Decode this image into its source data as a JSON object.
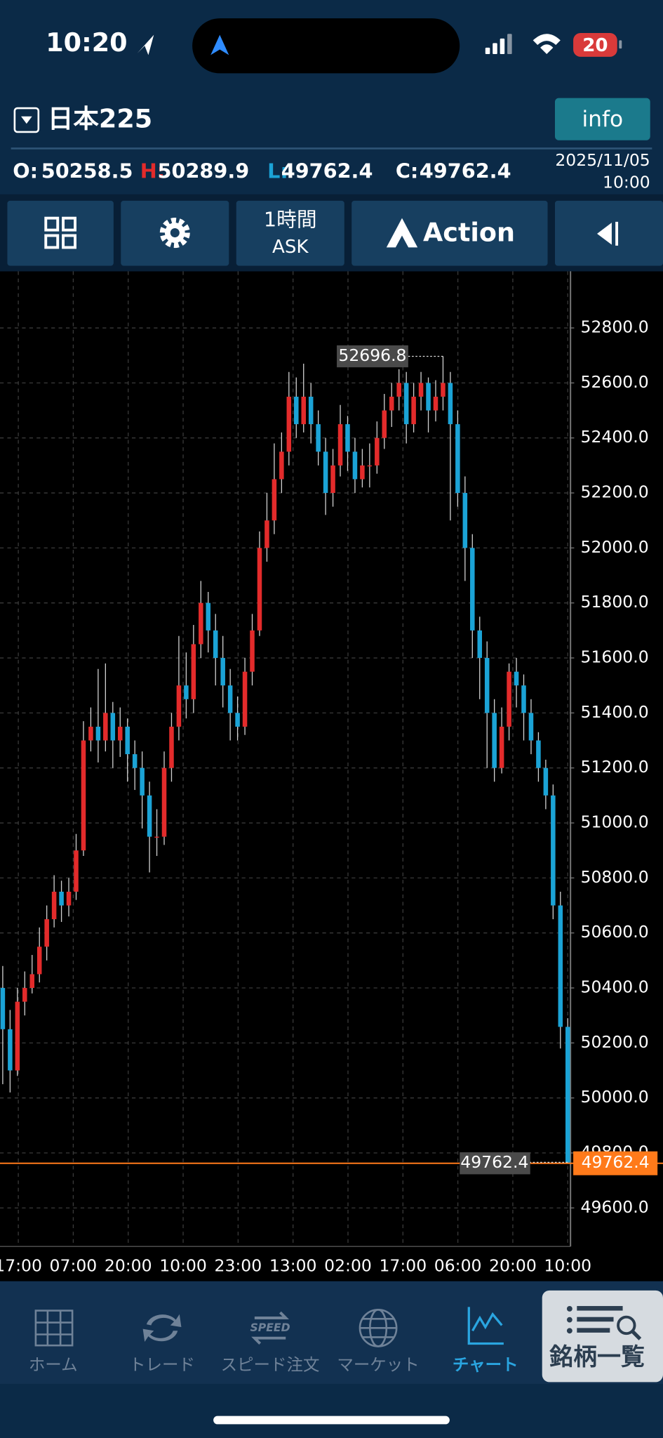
{
  "status_bar": {
    "time": "10:20",
    "battery": "20"
  },
  "header": {
    "title": "日本225",
    "info_button": "info"
  },
  "ohlc_bar": {
    "open_label": "O:",
    "open": 50258.5,
    "high_label": "H:",
    "high": 50289.9,
    "low_label": "L:",
    "low": 49762.4,
    "close_label": "C:",
    "close": 49762.4,
    "date": "2025/11/05",
    "time": "10:00"
  },
  "toolbar": {
    "timeframe": "1時間",
    "price_type": "ASK",
    "action": "Action"
  },
  "chart_data": {
    "type": "candlestick",
    "ohlc": [
      [
        50400,
        50480,
        50050,
        50250
      ],
      [
        50250,
        50320,
        50020,
        50100
      ],
      [
        50100,
        50400,
        50080,
        50350
      ],
      [
        50350,
        50460,
        50300,
        50400
      ],
      [
        50400,
        50520,
        50380,
        50450
      ],
      [
        50450,
        50620,
        50420,
        50550
      ],
      [
        50550,
        50700,
        50500,
        50650
      ],
      [
        50650,
        50810,
        50620,
        50750
      ],
      [
        50750,
        50790,
        50640,
        50700
      ],
      [
        50700,
        50800,
        50660,
        50750
      ],
      [
        50750,
        50960,
        50720,
        50900
      ],
      [
        50900,
        51370,
        50880,
        51300
      ],
      [
        51300,
        51420,
        51260,
        51350
      ],
      [
        51350,
        51560,
        51220,
        51300
      ],
      [
        51300,
        51580,
        51260,
        51400
      ],
      [
        51400,
        51440,
        51200,
        51300
      ],
      [
        51300,
        51420,
        51240,
        51350
      ],
      [
        51350,
        51380,
        51150,
        51250
      ],
      [
        51250,
        51300,
        51120,
        51200
      ],
      [
        51200,
        51260,
        50980,
        51100
      ],
      [
        51100,
        51150,
        50820,
        50950
      ],
      [
        50950,
        51050,
        50880,
        50950
      ],
      [
        50950,
        51260,
        50920,
        51200
      ],
      [
        51200,
        51400,
        51150,
        51350
      ],
      [
        51350,
        51680,
        51300,
        51500
      ],
      [
        51500,
        51620,
        51380,
        51450
      ],
      [
        51450,
        51720,
        51400,
        51650
      ],
      [
        51650,
        51880,
        51600,
        51800
      ],
      [
        51800,
        51840,
        51620,
        51700
      ],
      [
        51700,
        51760,
        51500,
        51600
      ],
      [
        51600,
        51680,
        51420,
        51500
      ],
      [
        51500,
        51560,
        51300,
        51400
      ],
      [
        51400,
        51460,
        51300,
        51350
      ],
      [
        51350,
        51600,
        51320,
        51550
      ],
      [
        51550,
        51760,
        51500,
        51700
      ],
      [
        51700,
        52060,
        51680,
        52000
      ],
      [
        52000,
        52200,
        51950,
        52100
      ],
      [
        52100,
        52380,
        52050,
        52250
      ],
      [
        52250,
        52420,
        52200,
        52350
      ],
      [
        52350,
        52640,
        52300,
        52550
      ],
      [
        52550,
        52620,
        52400,
        52450
      ],
      [
        52450,
        52670,
        52420,
        52550
      ],
      [
        52550,
        52600,
        52380,
        52450
      ],
      [
        52450,
        52500,
        52300,
        52350
      ],
      [
        52350,
        52400,
        52120,
        52200
      ],
      [
        52200,
        52360,
        52150,
        52300
      ],
      [
        52300,
        52520,
        52260,
        52450
      ],
      [
        52450,
        52480,
        52280,
        52350
      ],
      [
        52350,
        52400,
        52200,
        52250
      ],
      [
        52250,
        52360,
        52220,
        52300
      ],
      [
        52300,
        52380,
        52220,
        52300
      ],
      [
        52300,
        52460,
        52270,
        52400
      ],
      [
        52400,
        52560,
        52360,
        52500
      ],
      [
        52500,
        52600,
        52440,
        52550
      ],
      [
        52550,
        52650,
        52500,
        52600
      ],
      [
        52600,
        52640,
        52380,
        52450
      ],
      [
        52450,
        52600,
        52420,
        52550
      ],
      [
        52550,
        52640,
        52500,
        52600
      ],
      [
        52600,
        52620,
        52420,
        52500
      ],
      [
        52500,
        52610,
        52460,
        52550
      ],
      [
        52550,
        52696.8,
        52500,
        52600
      ],
      [
        52600,
        52640,
        52100,
        52450
      ],
      [
        52450,
        52500,
        52150,
        52200
      ],
      [
        52200,
        52260,
        51880,
        52000
      ],
      [
        52000,
        52050,
        51600,
        51700
      ],
      [
        51700,
        51750,
        51450,
        51600
      ],
      [
        51600,
        51660,
        51200,
        51400
      ],
      [
        51400,
        51450,
        51150,
        51200
      ],
      [
        51200,
        51420,
        51180,
        51350
      ],
      [
        51350,
        51580,
        51300,
        51550
      ],
      [
        51550,
        51600,
        51420,
        51500
      ],
      [
        51500,
        51540,
        51300,
        51400
      ],
      [
        51400,
        51450,
        51250,
        51300
      ],
      [
        51300,
        51330,
        51150,
        51200
      ],
      [
        51200,
        51230,
        51050,
        51100
      ],
      [
        51100,
        51140,
        50650,
        50700
      ],
      [
        50700,
        50750,
        50180,
        50258.5
      ],
      [
        50258.5,
        50289.9,
        49762.4,
        49762.4
      ]
    ],
    "up_color": "#e32b2b",
    "down_color": "#1ba3d6",
    "x_tick_labels": [
      "17:00",
      "07:00",
      "20:00",
      "10:00",
      "23:00",
      "13:00",
      "02:00",
      "17:00",
      "06:00",
      "20:00",
      "10:00"
    ],
    "ylim": [
      49460,
      53006
    ],
    "yticks": [
      {
        "value": 49600,
        "label": "49600.0"
      },
      {
        "value": 49800,
        "label": "49800.0"
      },
      {
        "value": 50000,
        "label": "50000.0"
      },
      {
        "value": 50200,
        "label": "50200.0"
      },
      {
        "value": 50400,
        "label": "50400.0"
      },
      {
        "value": 50600,
        "label": "50600.0"
      },
      {
        "value": 50800,
        "label": "50800.0"
      },
      {
        "value": 51000,
        "label": "51000.0"
      },
      {
        "value": 51200,
        "label": "51200.0"
      },
      {
        "value": 51400,
        "label": "51400.0"
      },
      {
        "value": 51600,
        "label": "51600.0"
      },
      {
        "value": 51800,
        "label": "51800.0"
      },
      {
        "value": 52000,
        "label": "52000.0"
      },
      {
        "value": 52200,
        "label": "52200.0"
      },
      {
        "value": 52400,
        "label": "52400.0"
      },
      {
        "value": 52600,
        "label": "52600.0"
      },
      {
        "value": 52800,
        "label": "52800.0"
      }
    ],
    "grid": true,
    "high_marker": 52696.8,
    "last_price": 49762.4,
    "last_price_color": "#ff7a1a"
  },
  "tab_bar": {
    "items": [
      {
        "label": "ホーム"
      },
      {
        "label": "トレード"
      },
      {
        "icon_text": "SPEED",
        "label": "スピード注文"
      },
      {
        "label": "マーケット"
      },
      {
        "label": "チャート"
      },
      {
        "label": "銘柄一覧"
      }
    ]
  }
}
